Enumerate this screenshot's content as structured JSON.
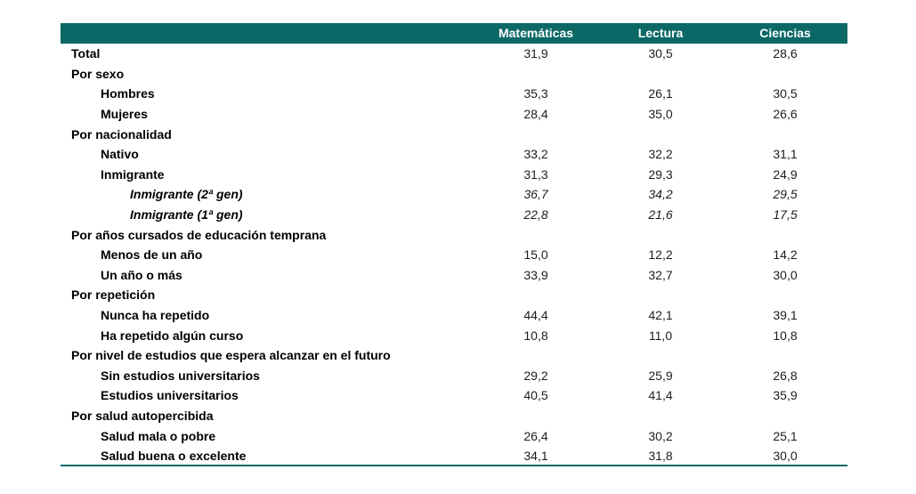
{
  "colors": {
    "header_bg": "#0b6867",
    "header_text": "#ffffff",
    "bottom_border": "#0b6867",
    "label_text": "#000000",
    "value_text": "#1d1d1d"
  },
  "chart_data": {
    "type": "table",
    "columns": [
      "Matemáticas",
      "Lectura",
      "Ciencias"
    ],
    "rows": [
      {
        "label": "Total",
        "level": 0,
        "italic": false,
        "values": [
          "31,9",
          "30,5",
          "28,6"
        ]
      },
      {
        "label": "Por sexo",
        "level": 0,
        "italic": false,
        "values": [
          "",
          "",
          ""
        ]
      },
      {
        "label": "Hombres",
        "level": 1,
        "italic": false,
        "values": [
          "35,3",
          "26,1",
          "30,5"
        ]
      },
      {
        "label": "Mujeres",
        "level": 1,
        "italic": false,
        "values": [
          "28,4",
          "35,0",
          "26,6"
        ]
      },
      {
        "label": "Por nacionalidad",
        "level": 0,
        "italic": false,
        "values": [
          "",
          "",
          ""
        ]
      },
      {
        "label": "Nativo",
        "level": 1,
        "italic": false,
        "values": [
          "33,2",
          "32,2",
          "31,1"
        ]
      },
      {
        "label": "Inmigrante",
        "level": 1,
        "italic": false,
        "values": [
          "31,3",
          "29,3",
          "24,9"
        ]
      },
      {
        "label": "Inmigrante (2ª gen)",
        "level": 2,
        "italic": true,
        "values": [
          "36,7",
          "34,2",
          "29,5"
        ]
      },
      {
        "label": "Inmigrante (1ª gen)",
        "level": 2,
        "italic": true,
        "values": [
          "22,8",
          "21,6",
          "17,5"
        ]
      },
      {
        "label": "Por años cursados de educación temprana",
        "level": 0,
        "italic": false,
        "values": [
          "",
          "",
          ""
        ]
      },
      {
        "label": "Menos de un año",
        "level": 1,
        "italic": false,
        "values": [
          "15,0",
          "12,2",
          "14,2"
        ]
      },
      {
        "label": "Un año o más",
        "level": 1,
        "italic": false,
        "values": [
          "33,9",
          "32,7",
          "30,0"
        ]
      },
      {
        "label": "Por repetición",
        "level": 0,
        "italic": false,
        "values": [
          "",
          "",
          ""
        ]
      },
      {
        "label": "Nunca ha repetido",
        "level": 1,
        "italic": false,
        "values": [
          "44,4",
          "42,1",
          "39,1"
        ]
      },
      {
        "label": "Ha repetido algún curso",
        "level": 1,
        "italic": false,
        "values": [
          "10,8",
          "11,0",
          "10,8"
        ]
      },
      {
        "label": "Por nivel de estudios que espera alcanzar en el futuro",
        "level": 0,
        "italic": false,
        "values": [
          "",
          "",
          ""
        ]
      },
      {
        "label": "Sin estudios universitarios",
        "level": 1,
        "italic": false,
        "values": [
          "29,2",
          "25,9",
          "26,8"
        ]
      },
      {
        "label": "Estudios universitarios",
        "level": 1,
        "italic": false,
        "values": [
          "40,5",
          "41,4",
          "35,9"
        ]
      },
      {
        "label": "Por salud autopercibida",
        "level": 0,
        "italic": false,
        "values": [
          "",
          "",
          ""
        ]
      },
      {
        "label": "Salud mala o pobre",
        "level": 1,
        "italic": false,
        "values": [
          "26,4",
          "30,2",
          "25,1"
        ]
      },
      {
        "label": "Salud buena o excelente",
        "level": 1,
        "italic": false,
        "values": [
          "34,1",
          "31,8",
          "30,0"
        ]
      }
    ]
  }
}
